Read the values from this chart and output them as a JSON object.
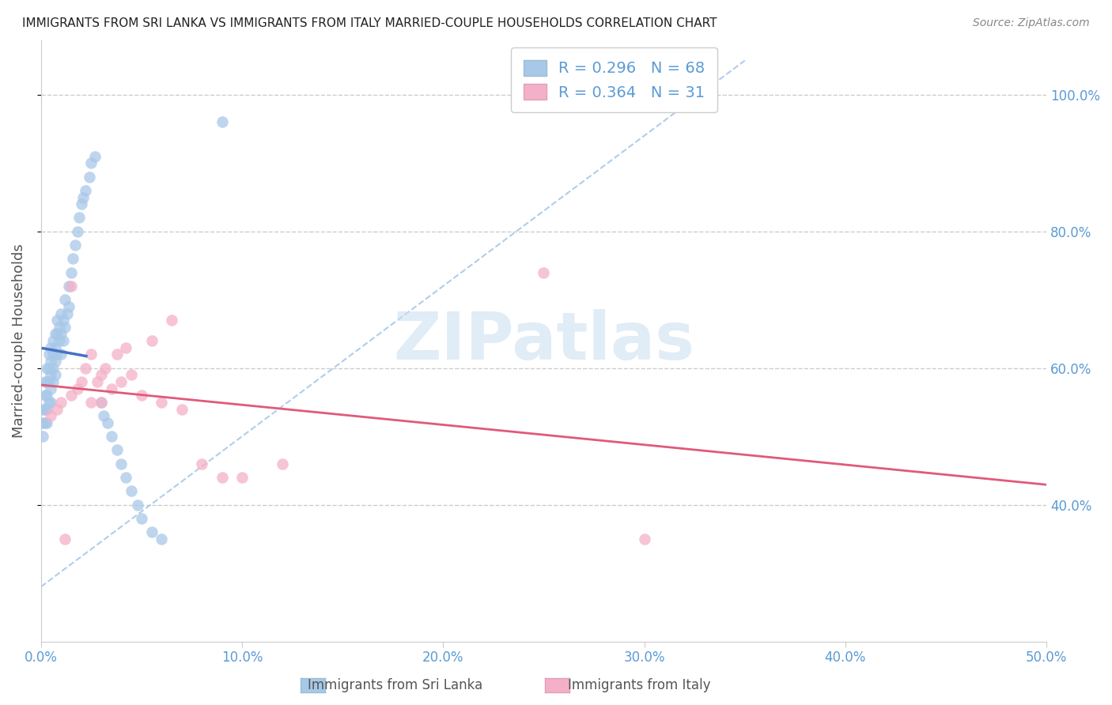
{
  "title": "IMMIGRANTS FROM SRI LANKA VS IMMIGRANTS FROM ITALY MARRIED-COUPLE HOUSEHOLDS CORRELATION CHART",
  "source": "Source: ZipAtlas.com",
  "ylabel_left": "Married-couple Households",
  "xlim": [
    0.0,
    0.5
  ],
  "ylim": [
    0.2,
    1.08
  ],
  "xtick_labels": [
    "0.0%",
    "10.0%",
    "20.0%",
    "30.0%",
    "40.0%",
    "50.0%"
  ],
  "xtick_values": [
    0.0,
    0.1,
    0.2,
    0.3,
    0.4,
    0.5
  ],
  "ytick_labels_right": [
    "40.0%",
    "60.0%",
    "80.0%",
    "100.0%"
  ],
  "ytick_values": [
    0.4,
    0.6,
    0.8,
    1.0
  ],
  "grid_color": "#cccccc",
  "background_color": "#ffffff",
  "sri_lanka_color": "#a8c8e8",
  "italy_color": "#f4b0c8",
  "sri_lanka_R": "0.296",
  "sri_lanka_N": "68",
  "italy_R": "0.364",
  "italy_N": "31",
  "legend_label_1": "Immigrants from Sri Lanka",
  "legend_label_2": "Immigrants from Italy",
  "watermark": "ZIPatlas",
  "axis_label_color": "#5b9bd5",
  "title_color": "#222222",
  "sri_lanka_line_color": "#4472c4",
  "italy_line_color": "#e05a7a",
  "ref_line_color": "#a8c8e8",
  "sri_lanka_x": [
    0.001,
    0.001,
    0.001,
    0.002,
    0.002,
    0.002,
    0.002,
    0.003,
    0.003,
    0.003,
    0.003,
    0.003,
    0.004,
    0.004,
    0.004,
    0.004,
    0.005,
    0.005,
    0.005,
    0.005,
    0.005,
    0.006,
    0.006,
    0.006,
    0.006,
    0.007,
    0.007,
    0.007,
    0.007,
    0.008,
    0.008,
    0.008,
    0.009,
    0.009,
    0.01,
    0.01,
    0.01,
    0.011,
    0.011,
    0.012,
    0.012,
    0.013,
    0.014,
    0.014,
    0.015,
    0.016,
    0.017,
    0.018,
    0.019,
    0.02,
    0.021,
    0.022,
    0.024,
    0.025,
    0.027,
    0.03,
    0.031,
    0.033,
    0.035,
    0.038,
    0.04,
    0.042,
    0.045,
    0.048,
    0.05,
    0.055,
    0.06,
    0.09
  ],
  "sri_lanka_y": [
    0.54,
    0.52,
    0.5,
    0.58,
    0.56,
    0.54,
    0.52,
    0.6,
    0.58,
    0.56,
    0.54,
    0.52,
    0.62,
    0.6,
    0.58,
    0.55,
    0.63,
    0.61,
    0.59,
    0.57,
    0.55,
    0.64,
    0.62,
    0.6,
    0.58,
    0.65,
    0.63,
    0.61,
    0.59,
    0.67,
    0.65,
    0.62,
    0.66,
    0.64,
    0.68,
    0.65,
    0.62,
    0.67,
    0.64,
    0.7,
    0.66,
    0.68,
    0.72,
    0.69,
    0.74,
    0.76,
    0.78,
    0.8,
    0.82,
    0.84,
    0.85,
    0.86,
    0.88,
    0.9,
    0.91,
    0.55,
    0.53,
    0.52,
    0.5,
    0.48,
    0.46,
    0.44,
    0.42,
    0.4,
    0.38,
    0.36,
    0.35,
    0.96
  ],
  "italy_x": [
    0.005,
    0.008,
    0.01,
    0.012,
    0.015,
    0.015,
    0.018,
    0.02,
    0.022,
    0.025,
    0.025,
    0.028,
    0.03,
    0.03,
    0.032,
    0.035,
    0.038,
    0.04,
    0.042,
    0.045,
    0.05,
    0.055,
    0.06,
    0.065,
    0.07,
    0.08,
    0.09,
    0.1,
    0.12,
    0.25,
    0.3
  ],
  "italy_y": [
    0.53,
    0.54,
    0.55,
    0.35,
    0.56,
    0.72,
    0.57,
    0.58,
    0.6,
    0.55,
    0.62,
    0.58,
    0.59,
    0.55,
    0.6,
    0.57,
    0.62,
    0.58,
    0.63,
    0.59,
    0.56,
    0.64,
    0.55,
    0.67,
    0.54,
    0.46,
    0.44,
    0.44,
    0.46,
    0.74,
    0.35
  ]
}
